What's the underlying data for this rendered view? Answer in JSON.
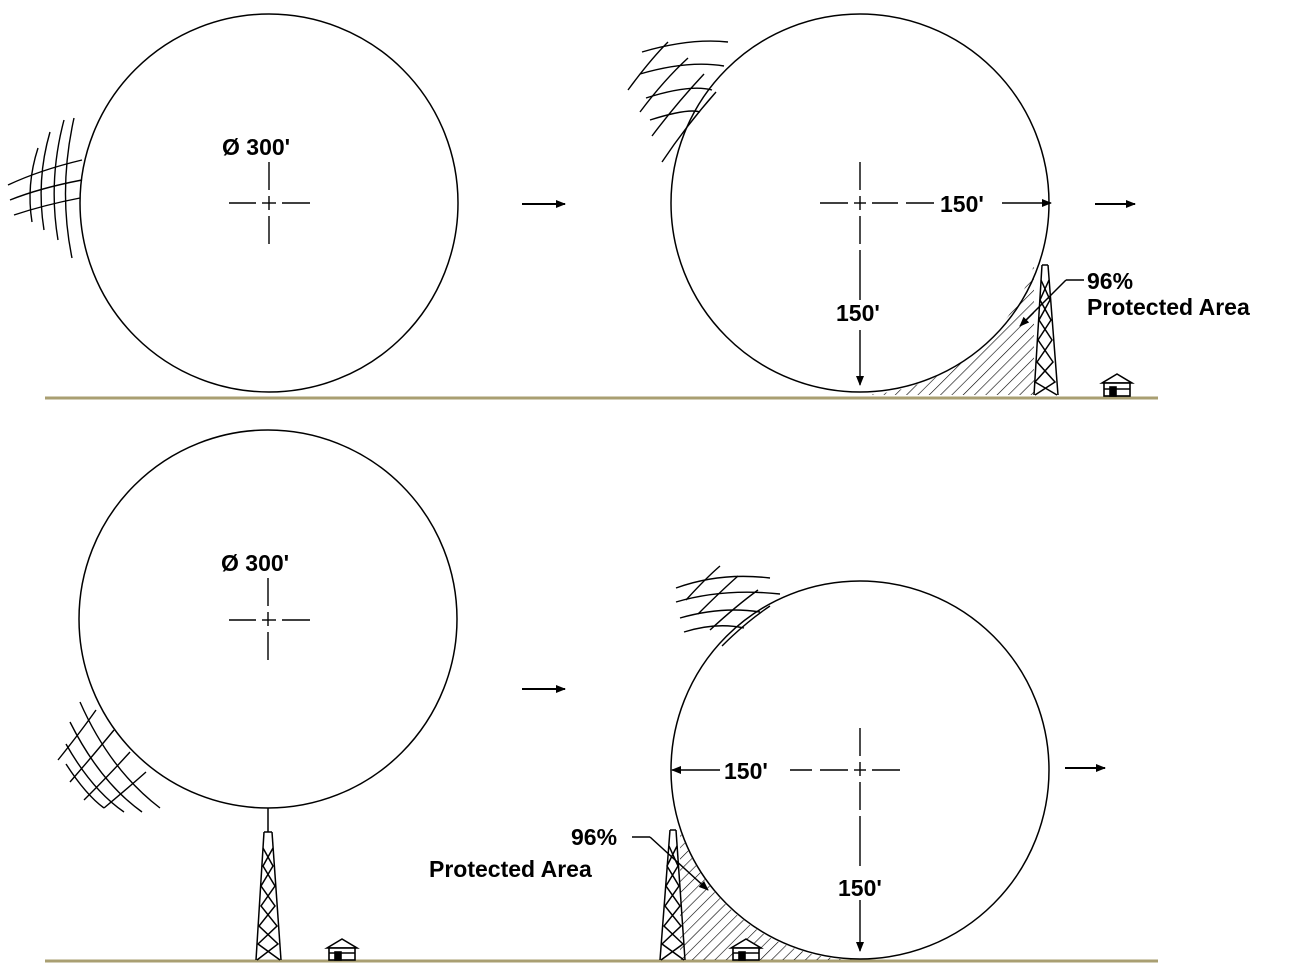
{
  "colors": {
    "ground": "#a99f72",
    "ink": "#000000",
    "background": "#ffffff"
  },
  "top_row": {
    "panel1": {
      "diameter_label": "Ø 300'"
    },
    "panel2": {
      "horizontal_label": "150'",
      "vertical_label": "150'",
      "protected_percent": "96%",
      "protected_text": "Protected Area"
    }
  },
  "bottom_row": {
    "panel1": {
      "diameter_label": "Ø 300'"
    },
    "panel2": {
      "horizontal_label": "150'",
      "vertical_label": "150'",
      "protected_percent": "96%",
      "protected_text": "Protected Area"
    }
  },
  "icons": [
    "motion-lines-icon",
    "arrow-right-icon",
    "lattice-tower-icon",
    "house-icon"
  ]
}
